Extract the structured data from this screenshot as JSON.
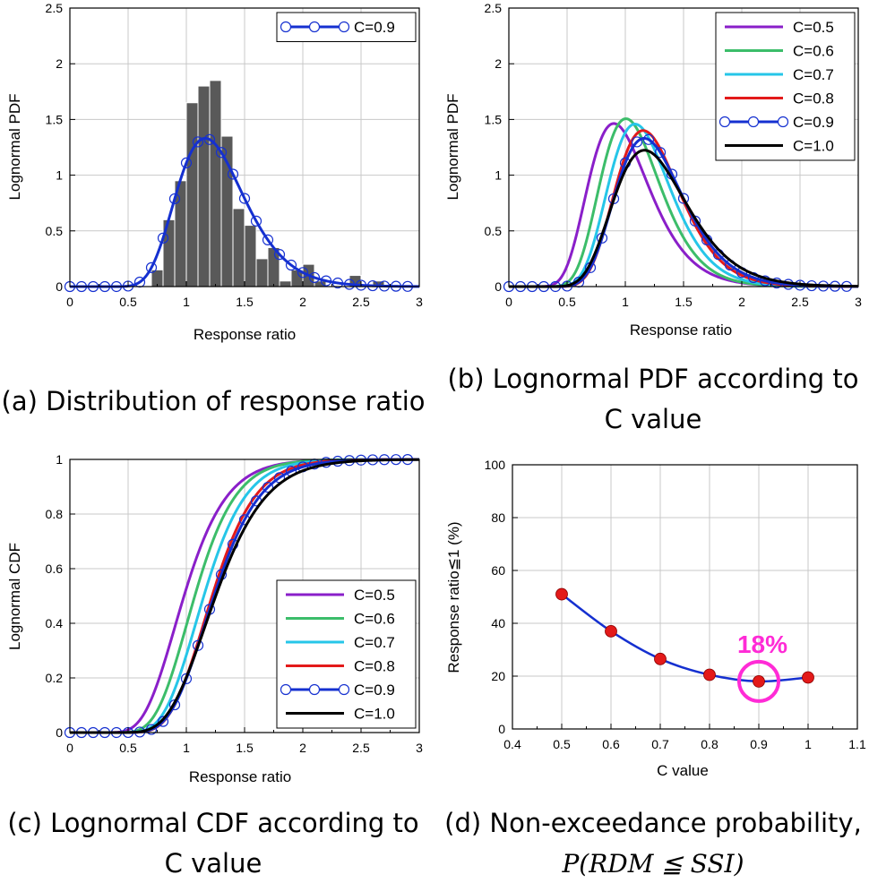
{
  "colors": {
    "c05": "#8a1fc9",
    "c06": "#3cbd6a",
    "c07": "#26c6e8",
    "c08": "#e31a1a",
    "c09": "#1530d0",
    "c10": "#000000",
    "hist": "#595959",
    "point": "#e31a1a",
    "highlight": "#ff2bd6"
  },
  "captions": {
    "a": "(a) Distribution of response ratio",
    "b_line1": "(b) Lognormal PDF according to",
    "b_line2": "C value",
    "c_line1": "(c) Lognormal CDF according to",
    "c_line2": "C value",
    "d_line1": "(d) Non-exceedance probability,",
    "d_line2": "P(RDM ≦ SSI)"
  },
  "chart_data": [
    {
      "id": "a",
      "type": "bar",
      "xlabel": "Response ratio",
      "ylabel": "Lognormal PDF",
      "xlim": [
        0,
        3
      ],
      "ylim": [
        0,
        2.5
      ],
      "xticks": [
        "0",
        "0.5",
        "1",
        "1.5",
        "2",
        "2.5",
        "3"
      ],
      "yticks": [
        "0",
        "0.5",
        "1",
        "1.5",
        "2",
        "2.5"
      ],
      "legend_position": "top-right",
      "legend": [
        "C=0.9"
      ],
      "histogram": {
        "bin_width": 0.1,
        "bins": [
          [
            0.7,
            0.15
          ],
          [
            0.8,
            0.6
          ],
          [
            0.9,
            0.95
          ],
          [
            1.0,
            1.65
          ],
          [
            1.1,
            1.8
          ],
          [
            1.2,
            1.85
          ],
          [
            1.3,
            1.35
          ],
          [
            1.4,
            0.7
          ],
          [
            1.5,
            0.55
          ],
          [
            1.6,
            0.25
          ],
          [
            1.7,
            0.35
          ],
          [
            1.8,
            0.05
          ],
          [
            1.9,
            0.15
          ],
          [
            2.0,
            0.2
          ],
          [
            2.1,
            0.05
          ],
          [
            2.4,
            0.1
          ],
          [
            2.6,
            0.05
          ]
        ]
      },
      "series": [
        {
          "name": "C=0.9",
          "kind": "lognormal_pdf",
          "mu": 0.213,
          "sigma": 0.25,
          "markers": true
        }
      ]
    },
    {
      "id": "b",
      "type": "line",
      "xlabel": "Response ratio",
      "ylabel": "Lognormal PDF",
      "xlim": [
        0,
        3
      ],
      "ylim": [
        0,
        2.5
      ],
      "xticks": [
        "0",
        "0.5",
        "1",
        "1.5",
        "2",
        "2.5",
        "3"
      ],
      "yticks": [
        "0",
        "0.5",
        "1",
        "1.5",
        "2",
        "2.5"
      ],
      "legend_position": "top-right",
      "legend": [
        "C=0.5",
        "C=0.6",
        "C=0.7",
        "C=0.8",
        "C=0.9",
        "C=1.0"
      ],
      "series": [
        {
          "name": "C=0.5",
          "kind": "lognormal_pdf",
          "mu": -0.02,
          "sigma": 0.29,
          "markers": false
        },
        {
          "name": "C=0.6",
          "kind": "lognormal_pdf",
          "mu": 0.07,
          "sigma": 0.255,
          "markers": false
        },
        {
          "name": "C=0.7",
          "kind": "lognormal_pdf",
          "mu": 0.14,
          "sigma": 0.245,
          "markers": false
        },
        {
          "name": "C=0.8",
          "kind": "lognormal_pdf",
          "mu": 0.2,
          "sigma": 0.24,
          "markers": false
        },
        {
          "name": "C=0.9",
          "kind": "lognormal_pdf",
          "mu": 0.213,
          "sigma": 0.25,
          "markers": true
        },
        {
          "name": "C=1.0",
          "kind": "lognormal_pdf",
          "mu": 0.225,
          "sigma": 0.27,
          "markers": false
        }
      ]
    },
    {
      "id": "c",
      "type": "line",
      "xlabel": "Response ratio",
      "ylabel": "Lognormal CDF",
      "xlim": [
        0,
        3
      ],
      "ylim": [
        0,
        1
      ],
      "xticks": [
        "0",
        "0.5",
        "1",
        "1.5",
        "2",
        "2.5",
        "3"
      ],
      "yticks": [
        "0",
        "0.2",
        "0.4",
        "0.6",
        "0.8",
        "1"
      ],
      "legend_position": "bottom-right",
      "legend": [
        "C=0.5",
        "C=0.6",
        "C=0.7",
        "C=0.8",
        "C=0.9",
        "C=1.0"
      ],
      "series": [
        {
          "name": "C=0.5",
          "kind": "lognormal_cdf",
          "mu": -0.02,
          "sigma": 0.29,
          "markers": false
        },
        {
          "name": "C=0.6",
          "kind": "lognormal_cdf",
          "mu": 0.07,
          "sigma": 0.255,
          "markers": false
        },
        {
          "name": "C=0.7",
          "kind": "lognormal_cdf",
          "mu": 0.14,
          "sigma": 0.245,
          "markers": false
        },
        {
          "name": "C=0.8",
          "kind": "lognormal_cdf",
          "mu": 0.2,
          "sigma": 0.24,
          "markers": false
        },
        {
          "name": "C=0.9",
          "kind": "lognormal_cdf",
          "mu": 0.213,
          "sigma": 0.25,
          "markers": true
        },
        {
          "name": "C=1.0",
          "kind": "lognormal_cdf",
          "mu": 0.225,
          "sigma": 0.27,
          "markers": false
        }
      ]
    },
    {
      "id": "d",
      "type": "line",
      "xlabel": "C value",
      "ylabel": "Response ratio≦1 (%)",
      "xlim": [
        0.4,
        1.1
      ],
      "ylim": [
        0,
        100
      ],
      "xticks": [
        "0.4",
        "0.5",
        "0.6",
        "0.7",
        "0.8",
        "0.9",
        "1",
        "1.1"
      ],
      "yticks": [
        "0",
        "20",
        "40",
        "60",
        "80",
        "100"
      ],
      "x": [
        0.5,
        0.6,
        0.7,
        0.8,
        0.9,
        1.0
      ],
      "y": [
        51,
        37,
        26.5,
        20.5,
        18,
        19.5
      ],
      "annotation": {
        "text": "18%",
        "x": 0.9,
        "y": 18
      }
    }
  ]
}
